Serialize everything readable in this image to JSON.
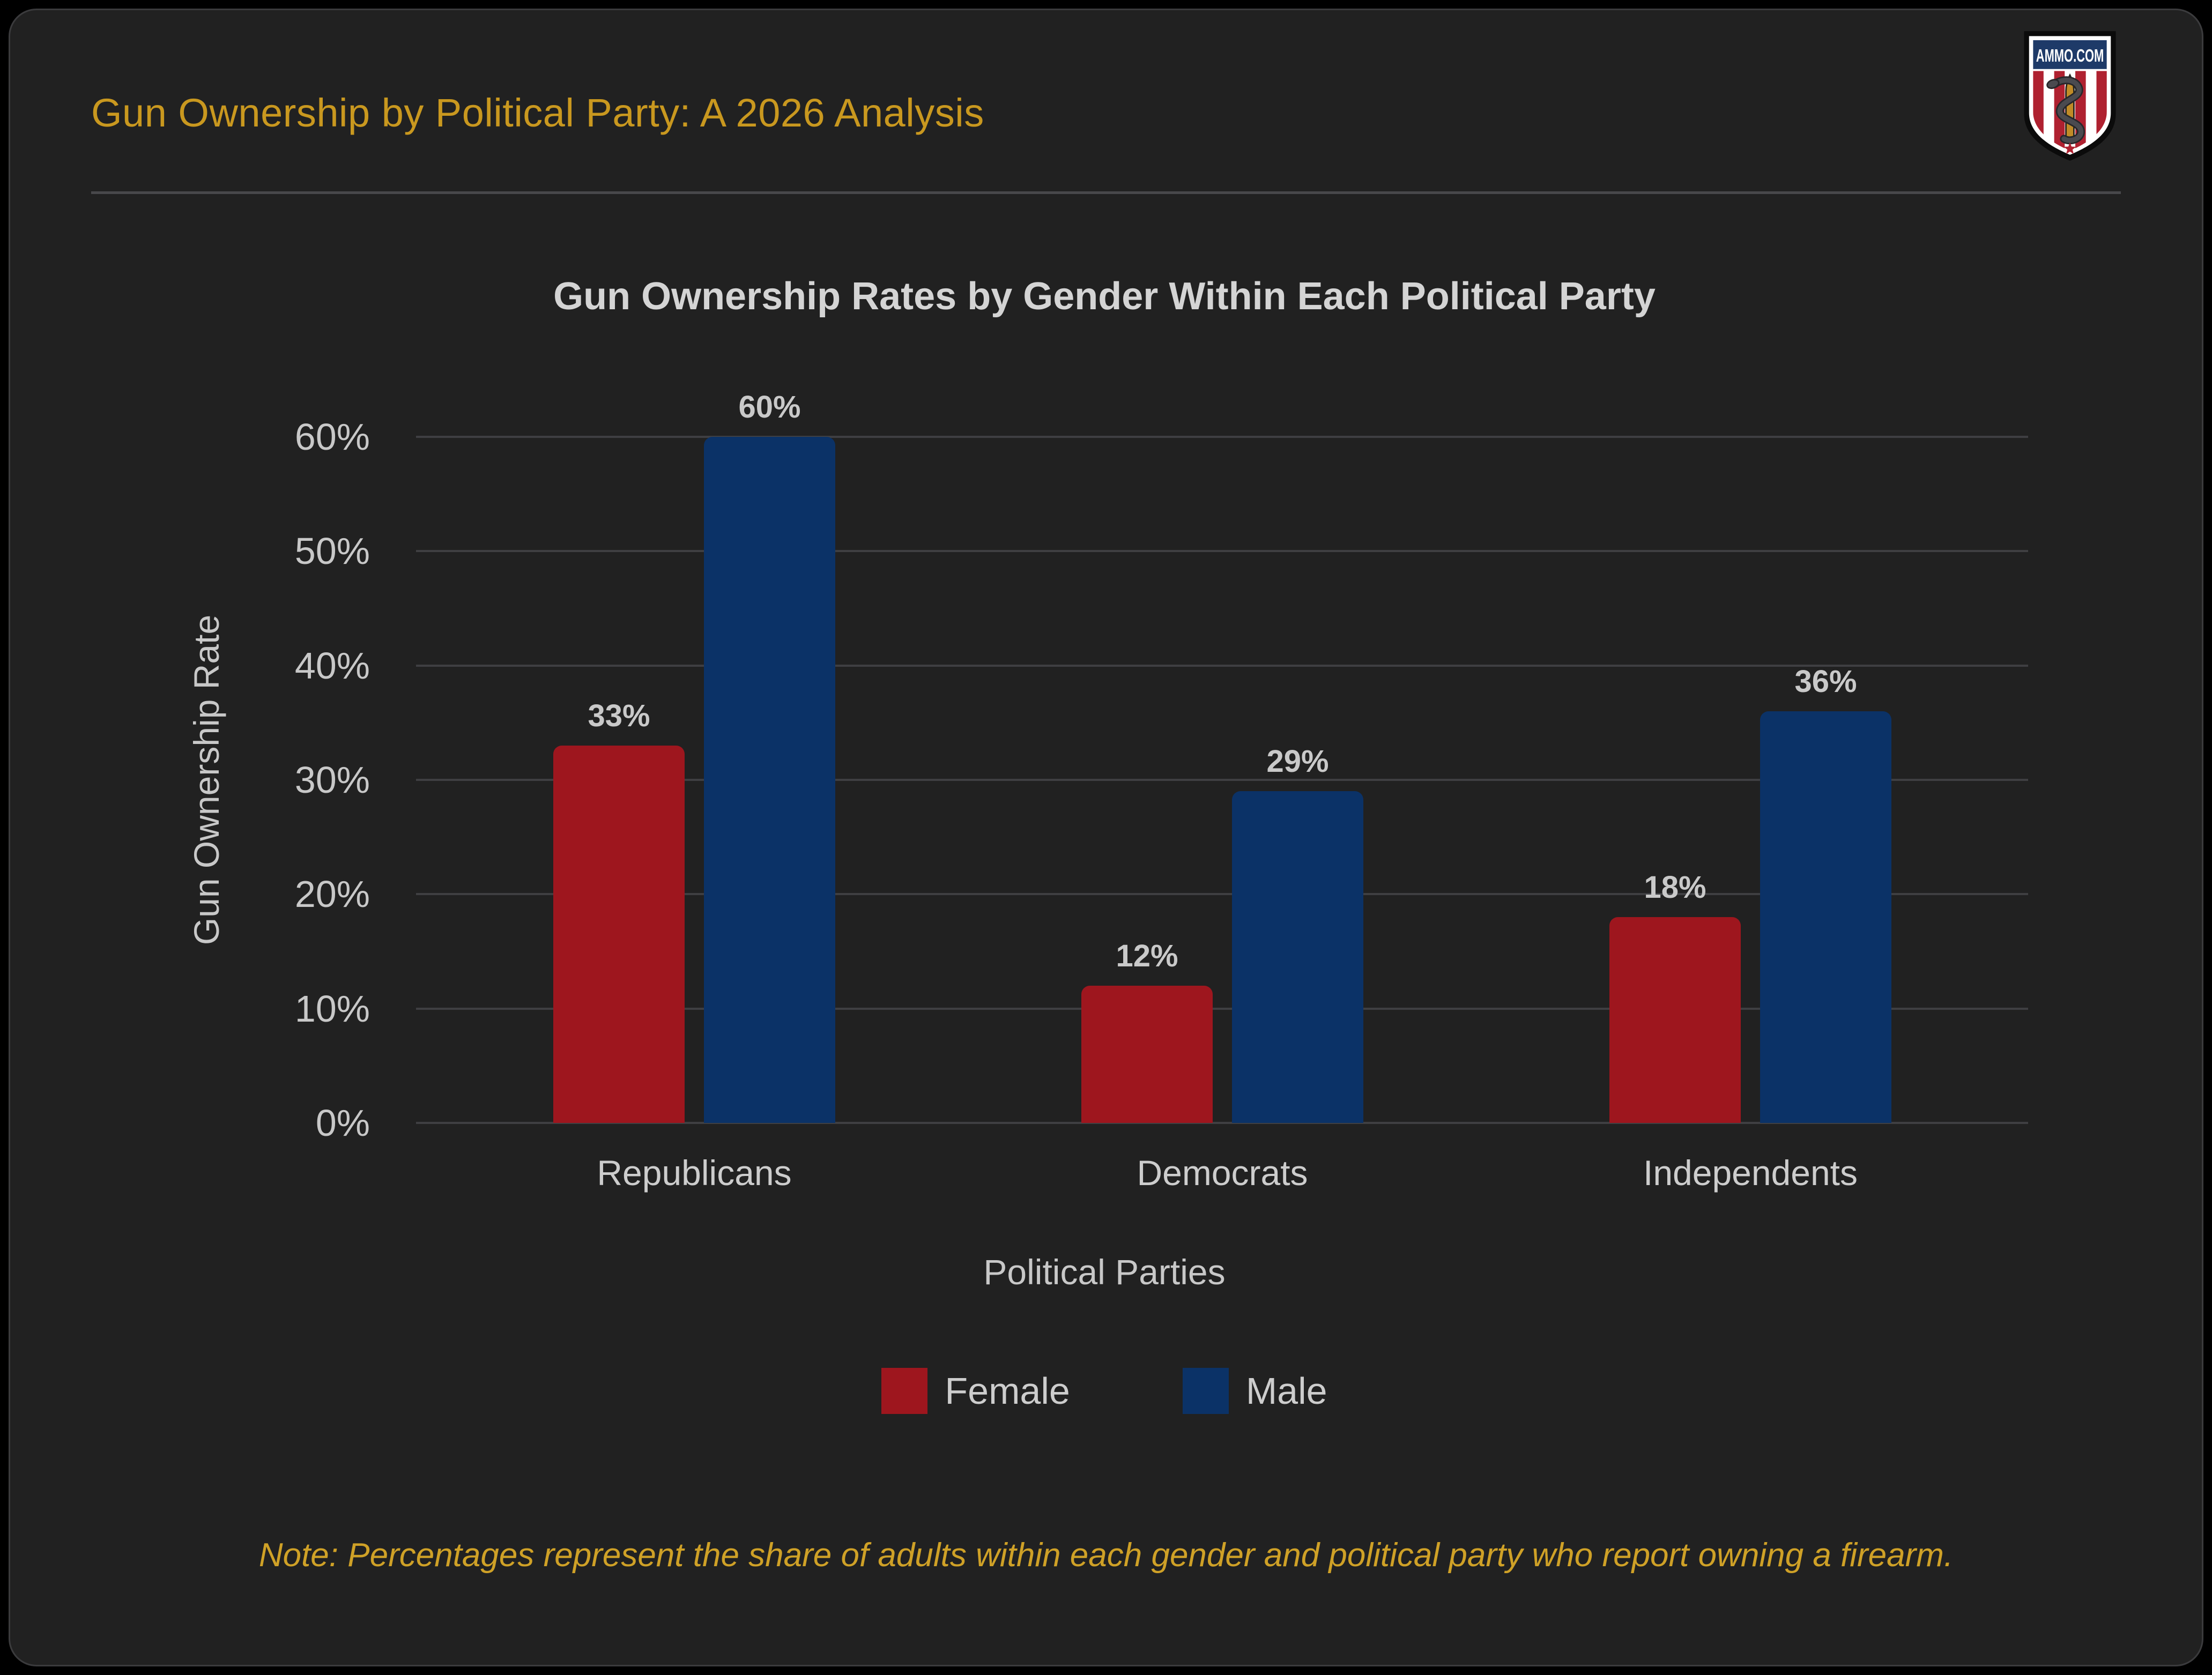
{
  "header": {
    "title": "Gun Ownership by Political Party: A 2026 Analysis",
    "logo_text": "AMMO.COM"
  },
  "note": "Note: Percentages represent the share of adults within each gender and political party who report owning a firearm.",
  "colors": {
    "background": "#212121",
    "accent_gold": "#c9981f",
    "note_gold": "#cfa127",
    "female_red": "#9e161e",
    "male_blue": "#0b3267",
    "gridline": "#3f3f42",
    "text_gray": "#c8c8c8",
    "logo_band_blue": "#1e3a68",
    "logo_stripe_red": "#af2130"
  },
  "chart_data": {
    "type": "bar",
    "title": "Gun Ownership Rates by Gender Within Each Political Party",
    "categories": [
      "Republicans",
      "Democrats",
      "Independents"
    ],
    "series": [
      {
        "name": "Female",
        "color": "#9e161e",
        "values": [
          33,
          12,
          18
        ]
      },
      {
        "name": "Male",
        "color": "#0b3267",
        "values": [
          60,
          29,
          36
        ]
      }
    ],
    "xlabel": "Political Parties",
    "ylabel": "Gun Ownership Rate",
    "ylim": [
      0,
      60
    ],
    "yticks": [
      0,
      10,
      20,
      30,
      40,
      50,
      60
    ],
    "ytick_suffix": "%",
    "value_suffix": "%",
    "grid": true,
    "legend_position": "bottom"
  }
}
